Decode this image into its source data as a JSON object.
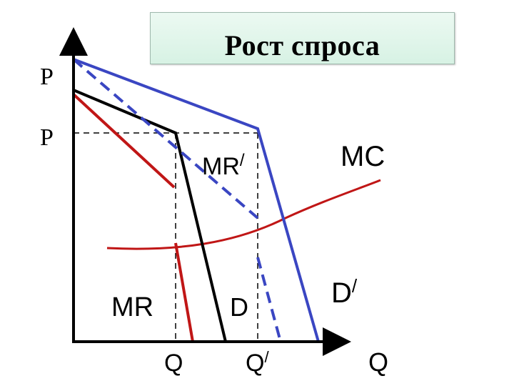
{
  "title": "Рост  спроса",
  "labels": {
    "p_upper": "P",
    "p_lower": "P",
    "mr_prime": "MR",
    "mr_prime_sup": "/",
    "mc": "MC",
    "mr": "MR",
    "d": "D",
    "d_prime": "D",
    "d_prime_sup": "/",
    "q": "Q",
    "q_prime": "Q",
    "q_prime_sup": "/",
    "q_axis": "Q"
  },
  "colors": {
    "blue": "#3a46c2",
    "red": "#c01616",
    "black": "#000000",
    "title_bg": "#dff4ea"
  }
}
